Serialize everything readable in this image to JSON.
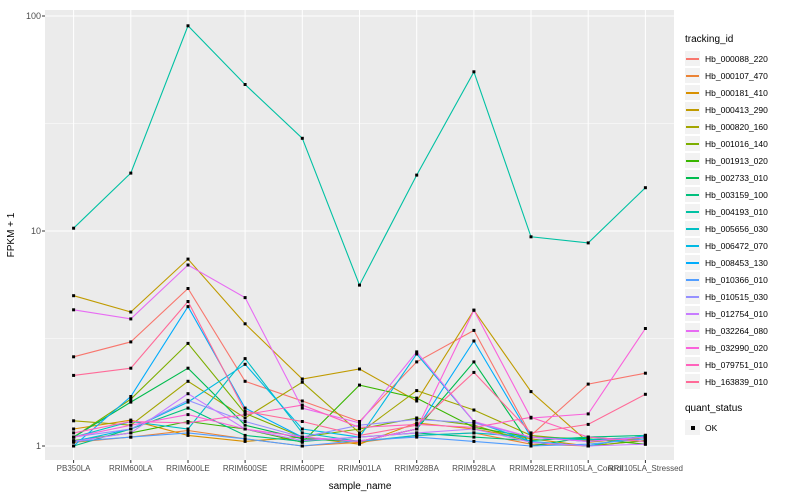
{
  "chart_data": {
    "type": "line",
    "title": "",
    "xlabel": "sample_name",
    "ylabel": "FPKM + 1",
    "y_scale": "log10",
    "y_ticks": [
      1,
      10,
      100
    ],
    "y_tick_labels": [
      "1",
      "10",
      "100"
    ],
    "y_minor_ticks": [
      3.162,
      31.62
    ],
    "ylim": [
      0.88,
      110
    ],
    "grid": "on",
    "legend_position": "right",
    "legend_title": "tracking_id",
    "point_legend": {
      "title": "quant_status",
      "label": "OK",
      "marker": "black-square"
    },
    "colors": {
      "panel_bg": "#EBEBEB",
      "grid": "#FFFFFF",
      "point": "#000000",
      "axis_text": "#4D4D4D",
      "legend_key_bg": "#F2F2F2"
    },
    "x_categories": [
      "PB350LA",
      "RRIM600LA",
      "RRIM600LE",
      "RRIM600SE",
      "RRIM600PE",
      "RRIM901LA",
      "RRIM928BA",
      "RRIM928LA",
      "RRIM928LE",
      "RRII105LA_Control",
      "RRII105LA_Stressed"
    ],
    "series": [
      {
        "name": "Hb_000088_220",
        "color": "#F8766D",
        "values": [
          2.6,
          3.05,
          5.4,
          2.0,
          1.62,
          1.3,
          2.46,
          3.45,
          1.12,
          1.94,
          2.18
        ]
      },
      {
        "name": "Hb_000107_470",
        "color": "#EB8335",
        "values": [
          1.04,
          1.1,
          1.18,
          1.08,
          1.0,
          1.04,
          1.12,
          1.15,
          1.02,
          1.0,
          1.06
        ]
      },
      {
        "name": "Hb_000181_410",
        "color": "#D89000",
        "values": [
          1.2,
          1.32,
          1.12,
          1.05,
          1.1,
          1.02,
          1.28,
          1.2,
          1.08,
          1.0,
          1.12
        ]
      },
      {
        "name": "Hb_000413_290",
        "color": "#C09B00",
        "values": [
          5.0,
          4.2,
          7.4,
          3.7,
          2.05,
          2.28,
          1.62,
          4.28,
          1.79,
          1.04,
          1.1
        ]
      },
      {
        "name": "Hb_000820_160",
        "color": "#A3A500",
        "values": [
          1.31,
          1.25,
          2.0,
          1.35,
          1.98,
          1.15,
          1.81,
          1.47,
          1.12,
          1.06,
          1.08
        ]
      },
      {
        "name": "Hb_001016_140",
        "color": "#7CAE00",
        "values": [
          1.1,
          1.65,
          3.0,
          1.42,
          1.1,
          1.2,
          1.35,
          1.25,
          1.04,
          1.0,
          1.06
        ]
      },
      {
        "name": "Hb_001913_020",
        "color": "#39B600",
        "values": [
          1.06,
          1.15,
          1.3,
          1.2,
          1.04,
          1.92,
          1.67,
          1.22,
          1.1,
          1.08,
          1.02
        ]
      },
      {
        "name": "Hb_002733_010",
        "color": "#00BB4E",
        "values": [
          1.1,
          1.6,
          2.3,
          1.25,
          1.08,
          1.05,
          1.2,
          2.46,
          1.0,
          1.1,
          1.05
        ]
      },
      {
        "name": "Hb_003159_100",
        "color": "#00BF7D",
        "values": [
          1.0,
          1.2,
          1.5,
          1.12,
          1.05,
          1.1,
          1.15,
          1.1,
          1.06,
          1.1,
          1.12
        ]
      },
      {
        "name": "Hb_004193_010",
        "color": "#00C1A3",
        "values": [
          10.3,
          18.6,
          90,
          48,
          27,
          5.6,
          18.2,
          55,
          9.4,
          8.8,
          15.9
        ]
      },
      {
        "name": "Hb_005656_030",
        "color": "#00BFC4",
        "values": [
          1.1,
          1.3,
          1.2,
          2.55,
          1.15,
          1.05,
          1.12,
          1.15,
          1.1,
          1.07,
          1.1
        ]
      },
      {
        "name": "Hb_006472_070",
        "color": "#00B9E3",
        "values": [
          1.05,
          1.2,
          1.6,
          2.4,
          1.2,
          1.1,
          2.68,
          1.3,
          1.05,
          1.0,
          1.12
        ]
      },
      {
        "name": "Hb_008453_130",
        "color": "#00ACFC",
        "values": [
          1.0,
          1.7,
          4.45,
          1.5,
          1.1,
          1.05,
          1.2,
          3.08,
          1.1,
          1.05,
          1.1
        ]
      },
      {
        "name": "Hb_010366_010",
        "color": "#529EFF",
        "values": [
          1.05,
          1.1,
          1.15,
          1.08,
          1.0,
          1.06,
          1.1,
          1.05,
          1.0,
          1.02,
          1.08
        ]
      },
      {
        "name": "Hb_010515_030",
        "color": "#9590FF",
        "values": [
          1.1,
          1.2,
          1.63,
          1.3,
          1.1,
          1.25,
          1.33,
          1.28,
          1.1,
          1.05,
          1.1
        ]
      },
      {
        "name": "Hb_012754_010",
        "color": "#C77CFF",
        "values": [
          1.05,
          1.15,
          1.75,
          1.2,
          1.06,
          1.1,
          1.15,
          1.2,
          1.04,
          1.0,
          1.02
        ]
      },
      {
        "name": "Hb_032264_080",
        "color": "#E76BF3",
        "values": [
          4.3,
          3.9,
          6.95,
          4.9,
          1.5,
          1.28,
          2.74,
          1.3,
          1.1,
          1.05,
          1.1
        ]
      },
      {
        "name": "Hb_032990_020",
        "color": "#FA62DB",
        "values": [
          1.1,
          1.25,
          1.4,
          1.2,
          1.1,
          1.05,
          1.2,
          4.28,
          1.35,
          1.41,
          3.52
        ]
      },
      {
        "name": "Hb_079751_010",
        "color": "#FF62BC",
        "values": [
          1.15,
          1.3,
          1.28,
          1.4,
          1.55,
          1.22,
          1.26,
          1.22,
          1.36,
          1.1,
          1.05
        ]
      },
      {
        "name": "Hb_163839_010",
        "color": "#FF6A98",
        "values": [
          2.13,
          2.3,
          4.7,
          1.45,
          1.3,
          1.12,
          1.25,
          2.2,
          1.15,
          1.26,
          1.74
        ]
      }
    ]
  }
}
